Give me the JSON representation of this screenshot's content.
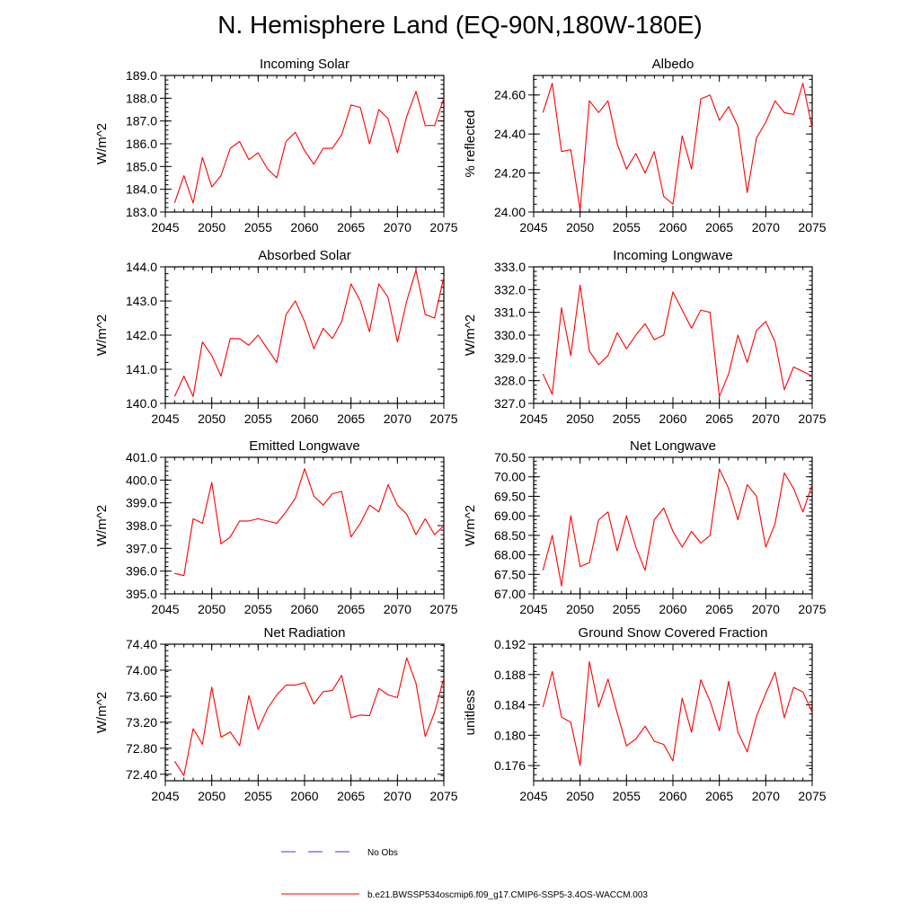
{
  "page_title": "N. Hemisphere Land (EQ-90N,180W-180E)",
  "colors": {
    "series": "#ff0000",
    "obs": "#3333ff",
    "axis": "#000000"
  },
  "legend": {
    "obs_label": "No Obs",
    "series_label": "b.e21.BWSSP534oscmip6.f09_g17.CMIP6-SSP5-3.4OS-WACCM.003"
  },
  "chart_data": [
    {
      "type": "line",
      "title": "Incoming Solar",
      "ylabel": "W/m^2",
      "xlim": [
        2045,
        2075
      ],
      "ylim": [
        183.0,
        189.0
      ],
      "xticks": [
        2045,
        2050,
        2055,
        2060,
        2065,
        2070,
        2075
      ],
      "yticks": [
        "183.0",
        "184.0",
        "185.0",
        "186.0",
        "187.0",
        "188.0",
        "189.0"
      ],
      "x": [
        2046,
        2047,
        2048,
        2049,
        2050,
        2051,
        2052,
        2053,
        2054,
        2055,
        2056,
        2057,
        2058,
        2059,
        2060,
        2061,
        2062,
        2063,
        2064,
        2065,
        2066,
        2067,
        2068,
        2069,
        2070,
        2071,
        2072,
        2073,
        2074,
        2075
      ],
      "y": [
        183.4,
        184.6,
        183.4,
        185.4,
        184.1,
        184.6,
        185.8,
        186.1,
        185.3,
        185.6,
        184.9,
        184.5,
        186.1,
        186.5,
        185.7,
        185.1,
        185.8,
        185.8,
        186.4,
        187.7,
        187.6,
        186.0,
        187.5,
        187.1,
        185.6,
        187.2,
        188.3,
        186.8,
        186.8,
        188.0
      ]
    },
    {
      "type": "line",
      "title": "Albedo",
      "ylabel": "% reflected",
      "xlim": [
        2045,
        2075
      ],
      "ylim": [
        24.0,
        24.7
      ],
      "xticks": [
        2045,
        2050,
        2055,
        2060,
        2065,
        2070,
        2075
      ],
      "yticks": [
        "24.00",
        "24.20",
        "24.40",
        "24.60"
      ],
      "x": [
        2046,
        2047,
        2048,
        2049,
        2050,
        2051,
        2052,
        2053,
        2054,
        2055,
        2056,
        2057,
        2058,
        2059,
        2060,
        2061,
        2062,
        2063,
        2064,
        2065,
        2066,
        2067,
        2068,
        2069,
        2070,
        2071,
        2072,
        2073,
        2074,
        2075
      ],
      "y": [
        24.51,
        24.66,
        24.31,
        24.32,
        24.01,
        24.57,
        24.51,
        24.57,
        24.35,
        24.22,
        24.3,
        24.2,
        24.31,
        24.08,
        24.04,
        24.39,
        24.22,
        24.58,
        24.6,
        24.47,
        24.54,
        24.44,
        24.1,
        24.38,
        24.46,
        24.57,
        24.51,
        24.5,
        24.66,
        24.43
      ]
    },
    {
      "type": "line",
      "title": "Absorbed Solar",
      "ylabel": "W/m^2",
      "xlim": [
        2045,
        2075
      ],
      "ylim": [
        140.0,
        144.0
      ],
      "xticks": [
        2045,
        2050,
        2055,
        2060,
        2065,
        2070,
        2075
      ],
      "yticks": [
        "140.0",
        "141.0",
        "142.0",
        "143.0",
        "144.0"
      ],
      "x": [
        2046,
        2047,
        2048,
        2049,
        2050,
        2051,
        2052,
        2053,
        2054,
        2055,
        2056,
        2057,
        2058,
        2059,
        2060,
        2061,
        2062,
        2063,
        2064,
        2065,
        2066,
        2067,
        2068,
        2069,
        2070,
        2071,
        2072,
        2073,
        2074,
        2075
      ],
      "y": [
        140.2,
        140.8,
        140.2,
        141.8,
        141.4,
        140.8,
        141.9,
        141.9,
        141.7,
        142.0,
        141.6,
        141.2,
        142.6,
        143.0,
        142.4,
        141.6,
        142.2,
        141.9,
        142.4,
        143.5,
        143.0,
        142.1,
        143.5,
        143.1,
        141.8,
        143.0,
        143.9,
        142.6,
        142.5,
        143.7
      ]
    },
    {
      "type": "line",
      "title": "Incoming Longwave",
      "ylabel": "W/m^2",
      "xlim": [
        2045,
        2075
      ],
      "ylim": [
        327.0,
        333.0
      ],
      "xticks": [
        2045,
        2050,
        2055,
        2060,
        2065,
        2070,
        2075
      ],
      "yticks": [
        "327.0",
        "328.0",
        "329.0",
        "330.0",
        "331.0",
        "332.0",
        "333.0"
      ],
      "x": [
        2046,
        2047,
        2048,
        2049,
        2050,
        2051,
        2052,
        2053,
        2054,
        2055,
        2056,
        2057,
        2058,
        2059,
        2060,
        2061,
        2062,
        2063,
        2064,
        2065,
        2066,
        2067,
        2068,
        2069,
        2070,
        2071,
        2072,
        2073,
        2074,
        2075
      ],
      "y": [
        328.3,
        327.4,
        331.2,
        329.1,
        332.2,
        329.3,
        328.7,
        329.1,
        330.1,
        329.4,
        330.0,
        330.5,
        329.8,
        330.0,
        331.9,
        331.1,
        330.3,
        331.1,
        331.0,
        327.3,
        328.3,
        330.0,
        328.8,
        330.2,
        330.6,
        329.7,
        327.6,
        328.6,
        328.4,
        328.2
      ]
    },
    {
      "type": "line",
      "title": "Emitted Longwave",
      "ylabel": "W/m^2",
      "xlim": [
        2045,
        2075
      ],
      "ylim": [
        395.0,
        401.0
      ],
      "xticks": [
        2045,
        2050,
        2055,
        2060,
        2065,
        2070,
        2075
      ],
      "yticks": [
        "395.0",
        "396.0",
        "397.0",
        "398.0",
        "399.0",
        "400.0",
        "401.0"
      ],
      "x": [
        2046,
        2047,
        2048,
        2049,
        2050,
        2051,
        2052,
        2053,
        2054,
        2055,
        2056,
        2057,
        2058,
        2059,
        2060,
        2061,
        2062,
        2063,
        2064,
        2065,
        2066,
        2067,
        2068,
        2069,
        2070,
        2071,
        2072,
        2073,
        2074,
        2075
      ],
      "y": [
        395.9,
        395.8,
        398.3,
        398.1,
        399.9,
        397.2,
        397.5,
        398.2,
        398.2,
        398.3,
        398.2,
        398.1,
        398.6,
        399.2,
        400.5,
        399.3,
        398.9,
        399.4,
        399.5,
        397.5,
        398.1,
        398.9,
        398.6,
        399.8,
        398.9,
        398.5,
        397.6,
        398.3,
        397.6,
        398.0
      ]
    },
    {
      "type": "line",
      "title": "Net Longwave",
      "ylabel": "W/m^2",
      "xlim": [
        2045,
        2075
      ],
      "ylim": [
        67.0,
        70.5
      ],
      "xticks": [
        2045,
        2050,
        2055,
        2060,
        2065,
        2070,
        2075
      ],
      "yticks": [
        "67.00",
        "67.50",
        "68.00",
        "68.50",
        "69.00",
        "69.50",
        "70.00",
        "70.50"
      ],
      "x": [
        2046,
        2047,
        2048,
        2049,
        2050,
        2051,
        2052,
        2053,
        2054,
        2055,
        2056,
        2057,
        2058,
        2059,
        2060,
        2061,
        2062,
        2063,
        2064,
        2065,
        2066,
        2067,
        2068,
        2069,
        2070,
        2071,
        2072,
        2073,
        2074,
        2075
      ],
      "y": [
        67.6,
        68.5,
        67.2,
        69.0,
        67.7,
        67.8,
        68.9,
        69.1,
        68.1,
        69.0,
        68.2,
        67.6,
        68.9,
        69.2,
        68.6,
        68.2,
        68.6,
        68.3,
        68.5,
        70.2,
        69.7,
        68.9,
        69.8,
        69.5,
        68.2,
        68.8,
        70.1,
        69.7,
        69.1,
        69.8
      ]
    },
    {
      "type": "line",
      "title": "Net Radiation",
      "ylabel": "W/m^2",
      "xlim": [
        2045,
        2075
      ],
      "ylim": [
        72.3,
        74.4
      ],
      "xticks": [
        2045,
        2050,
        2055,
        2060,
        2065,
        2070,
        2075
      ],
      "yticks": [
        "72.40",
        "72.80",
        "73.20",
        "73.60",
        "74.00",
        "74.40"
      ],
      "x": [
        2046,
        2047,
        2048,
        2049,
        2050,
        2051,
        2052,
        2053,
        2054,
        2055,
        2056,
        2057,
        2058,
        2059,
        2060,
        2061,
        2062,
        2063,
        2064,
        2065,
        2066,
        2067,
        2068,
        2069,
        2070,
        2071,
        2072,
        2073,
        2074,
        2075
      ],
      "y": [
        72.6,
        72.38,
        73.1,
        72.86,
        73.74,
        72.97,
        73.05,
        72.84,
        73.61,
        73.09,
        73.41,
        73.62,
        73.77,
        73.77,
        73.81,
        73.48,
        73.67,
        73.69,
        73.92,
        73.27,
        73.31,
        73.3,
        73.72,
        73.62,
        73.58,
        74.19,
        73.8,
        72.98,
        73.35,
        73.88
      ]
    },
    {
      "type": "line",
      "title": "Ground Snow Covered Fraction",
      "ylabel": "unitless",
      "xlim": [
        2045,
        2075
      ],
      "ylim": [
        0.174,
        0.192
      ],
      "xticks": [
        2045,
        2050,
        2055,
        2060,
        2065,
        2070,
        2075
      ],
      "yticks": [
        "0.176",
        "0.180",
        "0.184",
        "0.188",
        "0.192"
      ],
      "x": [
        2046,
        2047,
        2048,
        2049,
        2050,
        2051,
        2052,
        2053,
        2054,
        2055,
        2056,
        2057,
        2058,
        2059,
        2060,
        2061,
        2062,
        2063,
        2064,
        2065,
        2066,
        2067,
        2068,
        2069,
        2070,
        2071,
        2072,
        2073,
        2074,
        2075
      ],
      "y": [
        0.1837,
        0.1884,
        0.1824,
        0.1817,
        0.176,
        0.1897,
        0.1837,
        0.1874,
        0.1829,
        0.1786,
        0.1795,
        0.1812,
        0.1792,
        0.1788,
        0.1766,
        0.1849,
        0.1804,
        0.1873,
        0.1845,
        0.1806,
        0.1871,
        0.1804,
        0.1778,
        0.1825,
        0.1855,
        0.1883,
        0.1823,
        0.1863,
        0.1857,
        0.183
      ]
    }
  ]
}
